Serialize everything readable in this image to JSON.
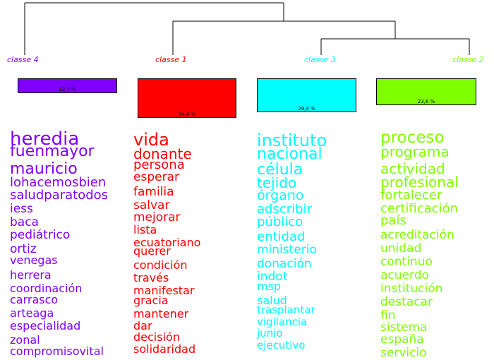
{
  "chart_data": {
    "type": "dendrogram",
    "classes": [
      {
        "name": "classe 4",
        "percent_label": "12,7 %",
        "percent": 12.7,
        "color": "#8000ff",
        "words": [
          "heredia",
          "fuenmayor",
          "mauricio",
          "lohacemosbien",
          "saludparatodos",
          "iess",
          "baca",
          "pediátrico",
          "ortiz",
          "venegas",
          "herrera",
          "coordinación",
          "carrasco",
          "arteaga",
          "especialidad",
          "zonal",
          "compromisovital"
        ]
      },
      {
        "name": "classe 1",
        "percent_label": "34,4 %",
        "percent": 34.4,
        "color": "#ff0000",
        "words": [
          "vida",
          "donante",
          "persona",
          "esperar",
          "familia",
          "salvar",
          "mejorar",
          "lista",
          "ecuatoriano",
          "querer",
          "condición",
          "través",
          "manifestar",
          "gracia",
          "mantener",
          "dar",
          "decisión",
          "solidaridad"
        ]
      },
      {
        "name": "classe 3",
        "percent_label": "29,4 %",
        "percent": 29.4,
        "color": "#00ffff",
        "words": [
          "instituto",
          "nacional",
          "célula",
          "tejido",
          "órgano",
          "adscribir",
          "público",
          "entidad",
          "ministerio",
          "donación",
          "indot",
          "msp",
          "salud",
          "trasplantar",
          "vigilancia",
          "junio",
          "ejecutivo"
        ]
      },
      {
        "name": "classe 2",
        "percent_label": "23,6 %",
        "percent": 23.6,
        "color": "#80ff00",
        "words": [
          "proceso",
          "programa",
          "actividad",
          "profesional",
          "fortalecer",
          "certificación",
          "país",
          "acreditación",
          "unidad",
          "continuo",
          "acuerdo",
          "institución",
          "destacar",
          "fin",
          "sistema",
          "españa",
          "servicio"
        ]
      }
    ]
  }
}
